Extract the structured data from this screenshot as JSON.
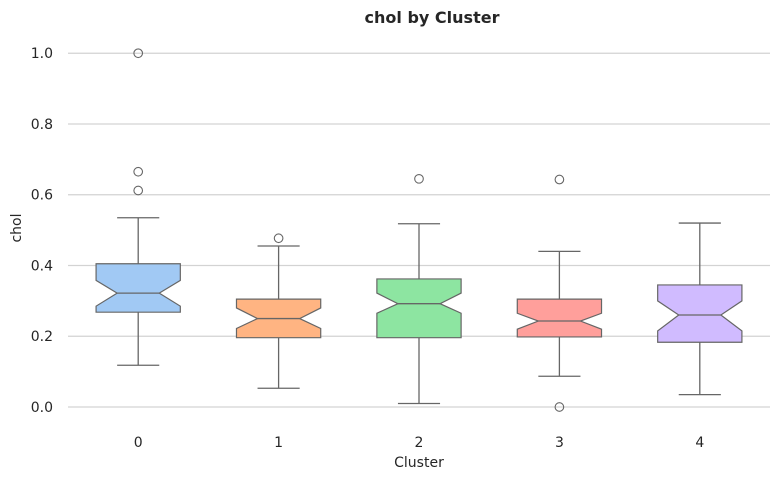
{
  "chart_data": {
    "type": "boxplot",
    "title": "chol by Cluster",
    "xlabel": "Cluster",
    "ylabel": "chol",
    "ylim": [
      -0.065,
      1.06
    ],
    "yticks": [
      "0.0",
      "0.2",
      "0.4",
      "0.6",
      "0.8",
      "1.0"
    ],
    "ytick_values": [
      0.0,
      0.2,
      0.4,
      0.6,
      0.8,
      1.0
    ],
    "grid": true,
    "notched": true,
    "categories": [
      "0",
      "1",
      "2",
      "3",
      "4"
    ],
    "boxes": [
      {
        "category": "0",
        "color": "#a1c9f4",
        "whisker_low": 0.118,
        "q1": 0.268,
        "median": 0.322,
        "q3": 0.405,
        "whisker_high": 0.535,
        "notch_low": 0.285,
        "notch_high": 0.358,
        "outliers": [
          1.0,
          0.665,
          0.612
        ]
      },
      {
        "category": "1",
        "color": "#ffb482",
        "whisker_low": 0.053,
        "q1": 0.196,
        "median": 0.25,
        "q3": 0.305,
        "whisker_high": 0.455,
        "notch_low": 0.222,
        "notch_high": 0.28,
        "outliers": [
          0.477
        ]
      },
      {
        "category": "2",
        "color": "#8de5a1",
        "whisker_low": 0.01,
        "q1": 0.196,
        "median": 0.292,
        "q3": 0.362,
        "whisker_high": 0.518,
        "notch_low": 0.265,
        "notch_high": 0.322,
        "outliers": [
          0.645
        ]
      },
      {
        "category": "3",
        "color": "#ff9f9b",
        "whisker_low": 0.087,
        "q1": 0.198,
        "median": 0.243,
        "q3": 0.305,
        "whisker_high": 0.44,
        "notch_low": 0.22,
        "notch_high": 0.265,
        "outliers": [
          0.643,
          0.0
        ]
      },
      {
        "category": "4",
        "color": "#d0bbff",
        "whisker_low": 0.035,
        "q1": 0.183,
        "median": 0.26,
        "q3": 0.345,
        "whisker_high": 0.52,
        "notch_low": 0.215,
        "notch_high": 0.3,
        "outliers": []
      }
    ],
    "colors": {
      "grid": "#d3d3d3",
      "edge": "#666666",
      "text": "#262626"
    }
  }
}
